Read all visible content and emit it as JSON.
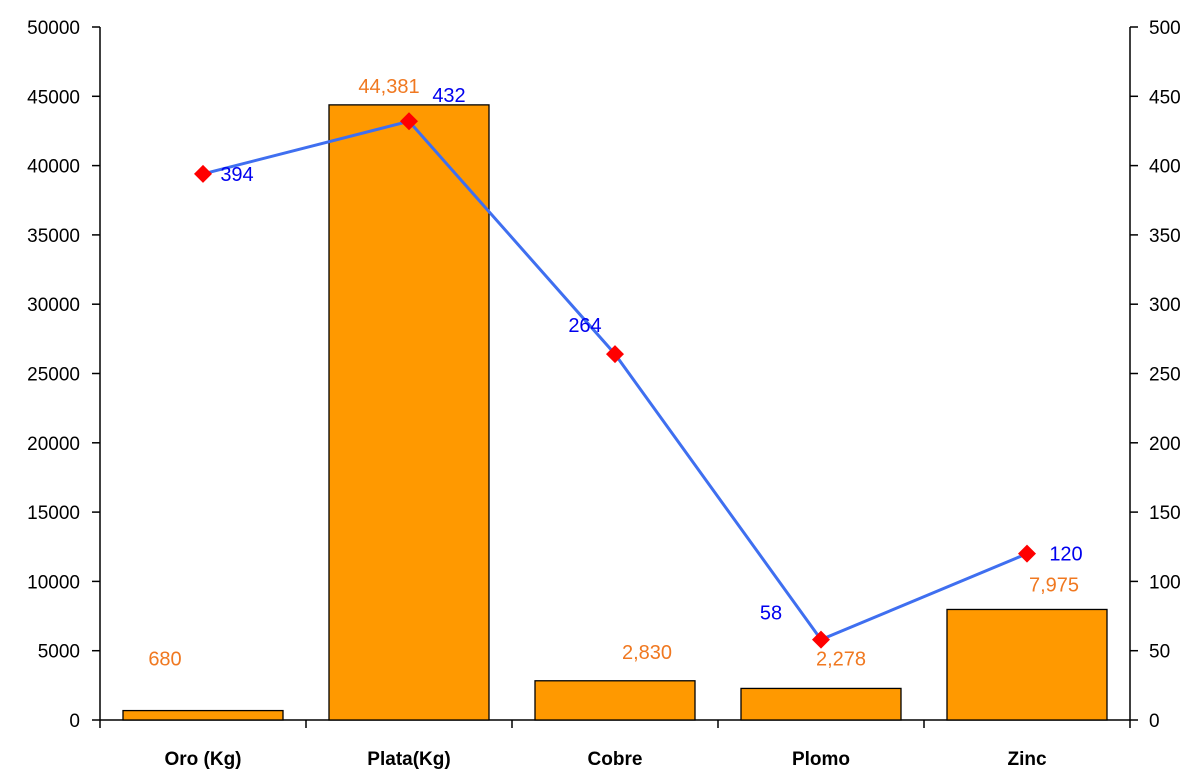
{
  "chart_data": {
    "type": "bar",
    "categories": [
      "Oro (Kg)",
      "Plata(Kg)",
      "Cobre",
      "Plomo",
      "Zinc"
    ],
    "y_left": {
      "min": 0,
      "max": 50000,
      "step": 5000
    },
    "y_right": {
      "min": 0,
      "max": 500,
      "step": 50
    },
    "series": [
      {
        "kind": "bar",
        "axis": "left",
        "values": [
          680,
          44381,
          2830,
          2278,
          7975
        ],
        "labels": [
          "680",
          "44,381",
          "2,830",
          "2,278",
          "7,975"
        ],
        "color": "#FF9900",
        "label_color": "#F07820"
      },
      {
        "kind": "line",
        "axis": "right",
        "values": [
          394,
          432,
          264,
          58,
          120
        ],
        "labels": [
          "394",
          "432",
          "264",
          "58",
          "120"
        ],
        "color": "#3F6FF0",
        "marker_color": "#FF0000",
        "label_color": "#0000EE"
      }
    ],
    "grid": false,
    "legend": "none"
  }
}
